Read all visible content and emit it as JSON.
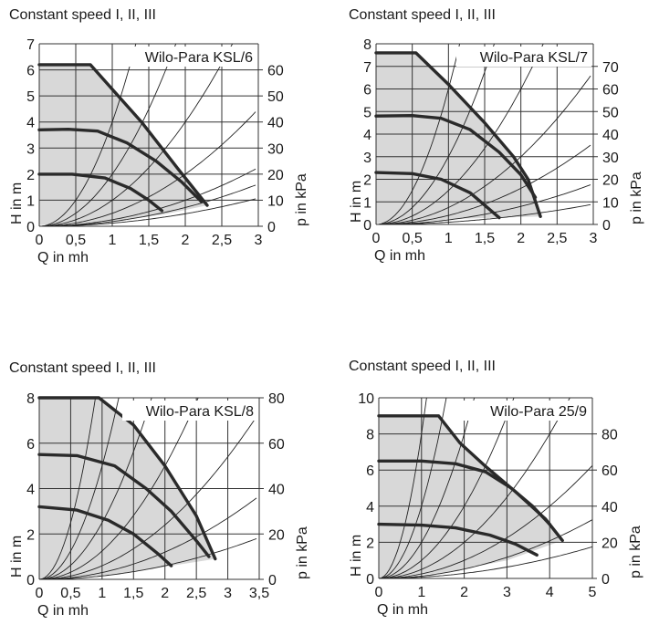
{
  "chart_data": [
    {
      "type": "line",
      "title": "Constant speed I, II, III",
      "model": "Wilo-Para KSL/6",
      "xlabel": "Q in mh",
      "ylabel": "H in m",
      "y2label": "p in kPa",
      "xlim": [
        0,
        3
      ],
      "ylim": [
        0,
        7
      ],
      "x_ticks": [
        0,
        0.5,
        1,
        1.5,
        2,
        2.5,
        3
      ],
      "x_tick_labels": [
        "0",
        "0,5",
        "1",
        "1,5",
        "2",
        "2,5",
        "3"
      ],
      "y_ticks": [
        0,
        1,
        2,
        3,
        4,
        5,
        6,
        7
      ],
      "y_tick_labels": [
        "0",
        "1",
        "2",
        "3",
        "4",
        "5",
        "6",
        "7"
      ],
      "y2_ticks": [
        0,
        10,
        20,
        30,
        40,
        50,
        60
      ],
      "y2_tick_labels": [
        "0",
        "10",
        "20",
        "30",
        "40",
        "50",
        "60"
      ],
      "y2_per_y": 10,
      "grid": true,
      "series": [
        {
          "points": [
            [
              0,
              6.2
            ],
            [
              0.7,
              6.2
            ],
            [
              1.4,
              4.0
            ],
            [
              1.9,
              2.2
            ],
            [
              2.3,
              0.8
            ]
          ]
        },
        {
          "points": [
            [
              0,
              3.7
            ],
            [
              0.4,
              3.72
            ],
            [
              0.8,
              3.65
            ],
            [
              1.2,
              3.2
            ],
            [
              1.6,
              2.5
            ],
            [
              1.95,
              1.7
            ],
            [
              2.22,
              0.95
            ]
          ]
        },
        {
          "points": [
            [
              0,
              2.0
            ],
            [
              0.45,
              2.0
            ],
            [
              0.9,
              1.85
            ],
            [
              1.25,
              1.45
            ],
            [
              1.5,
              1.0
            ],
            [
              1.68,
              0.6
            ]
          ]
        }
      ],
      "system_curve_k": [
        4.0,
        2.0,
        1.0,
        0.5,
        0.25,
        0.12,
        0.18
      ],
      "min_curve": [
        [
          0,
          0.05
        ],
        [
          0.5,
          0.1
        ],
        [
          1.0,
          0.2
        ],
        [
          1.7,
          0.45
        ],
        [
          2.3,
          0.8
        ]
      ]
    },
    {
      "type": "line",
      "title": "Constant speed I, II, III",
      "model": "Wilo-Para KSL/7",
      "xlabel": "Q in mh",
      "ylabel": "H in m",
      "y2label": "p in kPa",
      "xlim": [
        0,
        3
      ],
      "ylim": [
        0,
        8
      ],
      "x_ticks": [
        0,
        0.5,
        1,
        1.5,
        2,
        2.5,
        3
      ],
      "x_tick_labels": [
        "0",
        "0,5",
        "1",
        "1,5",
        "2",
        "2,5",
        "3"
      ],
      "y_ticks": [
        0,
        1,
        2,
        3,
        4,
        5,
        6,
        7,
        8
      ],
      "y_tick_labels": [
        "0",
        "1",
        "2",
        "3",
        "4",
        "5",
        "6",
        "7",
        "8"
      ],
      "y2_ticks": [
        0,
        10,
        20,
        30,
        40,
        50,
        60,
        70
      ],
      "y2_tick_labels": [
        "0",
        "10",
        "20",
        "30",
        "40",
        "50",
        "60",
        "70"
      ],
      "y2_per_y": 10,
      "grid": true,
      "series": [
        {
          "points": [
            [
              0,
              7.6
            ],
            [
              0.55,
              7.6
            ],
            [
              1.0,
              6.2
            ],
            [
              1.5,
              4.5
            ],
            [
              1.9,
              3.0
            ],
            [
              2.1,
              2.0
            ],
            [
              2.27,
              0.35
            ]
          ]
        },
        {
          "points": [
            [
              0,
              4.8
            ],
            [
              0.5,
              4.82
            ],
            [
              0.9,
              4.7
            ],
            [
              1.3,
              4.2
            ],
            [
              1.7,
              3.2
            ],
            [
              2.0,
              2.2
            ],
            [
              2.2,
              1.2
            ]
          ]
        },
        {
          "points": [
            [
              0,
              2.3
            ],
            [
              0.5,
              2.25
            ],
            [
              0.9,
              2.0
            ],
            [
              1.3,
              1.4
            ],
            [
              1.7,
              0.3
            ]
          ]
        }
      ],
      "system_curve_k": [
        6.0,
        3.0,
        1.5,
        0.75,
        0.4,
        0.2,
        0.1
      ],
      "min_curve": [
        [
          0,
          0.05
        ],
        [
          0.5,
          0.1
        ],
        [
          1.2,
          0.25
        ],
        [
          2.27,
          0.35
        ]
      ]
    },
    {
      "type": "line",
      "title": "Constant speed I, II, III",
      "model": "Wilo-Para KSL/8",
      "xlabel": "Q in mh",
      "ylabel": "H in m",
      "y2label": "p in kPa",
      "xlim": [
        0,
        3.5
      ],
      "ylim": [
        0,
        8
      ],
      "x_ticks": [
        0,
        0.5,
        1,
        1.5,
        2,
        2.5,
        3,
        3.5
      ],
      "x_tick_labels": [
        "0",
        "0,5",
        "1",
        "1,5",
        "2",
        "2,5",
        "3",
        "3,5"
      ],
      "y_ticks": [
        0,
        2,
        4,
        6,
        8
      ],
      "y_tick_labels": [
        "0",
        "2",
        "4",
        "6",
        "8"
      ],
      "y2_ticks": [
        0,
        20,
        40,
        60,
        80
      ],
      "y2_tick_labels": [
        "0",
        "20",
        "40",
        "60",
        "80"
      ],
      "y2_per_y": 10,
      "grid": true,
      "series": [
        {
          "points": [
            [
              0,
              8.0
            ],
            [
              0.95,
              8.0
            ],
            [
              1.5,
              6.8
            ],
            [
              2.0,
              5.0
            ],
            [
              2.5,
              2.8
            ],
            [
              2.8,
              0.9
            ]
          ]
        },
        {
          "points": [
            [
              0,
              5.5
            ],
            [
              0.6,
              5.45
            ],
            [
              1.2,
              5.0
            ],
            [
              1.7,
              4.0
            ],
            [
              2.1,
              3.0
            ],
            [
              2.5,
              1.7
            ],
            [
              2.7,
              1.0
            ]
          ]
        },
        {
          "points": [
            [
              0,
              3.2
            ],
            [
              0.6,
              3.05
            ],
            [
              1.1,
              2.6
            ],
            [
              1.5,
              2.0
            ],
            [
              1.9,
              1.1
            ],
            [
              2.1,
              0.6
            ]
          ]
        }
      ],
      "system_curve_k": [
        10.0,
        5.0,
        2.5,
        1.25,
        0.6,
        0.3,
        0.15
      ],
      "min_curve": [
        [
          0,
          0.0
        ],
        [
          0.3,
          0.0
        ],
        [
          1.2,
          0.2
        ],
        [
          2.1,
          0.6
        ],
        [
          2.8,
          0.9
        ]
      ]
    },
    {
      "type": "line",
      "title": "Constant speed I, II, III",
      "model": "Wilo-Para 25/9",
      "xlabel": "Q in mh",
      "ylabel": "H in m",
      "y2label": "p in kPa",
      "xlim": [
        0,
        5
      ],
      "ylim": [
        0,
        10
      ],
      "x_ticks": [
        0,
        1,
        2,
        3,
        4,
        5
      ],
      "x_tick_labels": [
        "0",
        "1",
        "2",
        "3",
        "4",
        "5"
      ],
      "y_ticks": [
        0,
        2,
        4,
        6,
        8,
        10
      ],
      "y_tick_labels": [
        "0",
        "2",
        "4",
        "6",
        "8",
        "10"
      ],
      "y2_ticks": [
        0,
        20,
        40,
        60,
        80
      ],
      "y2_tick_labels": [
        "0",
        "20",
        "40",
        "60",
        "80"
      ],
      "y2_per_y": 10,
      "grid": true,
      "series": [
        {
          "points": [
            [
              0,
              9.0
            ],
            [
              1.4,
              9.0
            ],
            [
              1.9,
              7.5
            ],
            [
              2.5,
              6.2
            ],
            [
              3.2,
              4.8
            ],
            [
              3.9,
              3.3
            ],
            [
              4.3,
              2.1
            ]
          ]
        },
        {
          "points": [
            [
              0,
              6.5
            ],
            [
              1.0,
              6.5
            ],
            [
              1.8,
              6.35
            ],
            [
              2.5,
              5.9
            ],
            [
              3.1,
              5.0
            ],
            [
              3.6,
              4.0
            ],
            [
              4.0,
              3.0
            ]
          ]
        },
        {
          "points": [
            [
              0,
              3.0
            ],
            [
              1.0,
              2.95
            ],
            [
              1.8,
              2.8
            ],
            [
              2.6,
              2.4
            ],
            [
              3.2,
              1.9
            ],
            [
              3.7,
              1.3
            ]
          ]
        }
      ],
      "system_curve_k": [
        8.0,
        4.0,
        2.0,
        1.0,
        0.5,
        0.25,
        0.13,
        0.07
      ],
      "min_curve": [
        [
          0,
          0.05
        ],
        [
          1.5,
          0.3
        ],
        [
          3.0,
          1.0
        ],
        [
          4.3,
          2.1
        ]
      ]
    }
  ]
}
